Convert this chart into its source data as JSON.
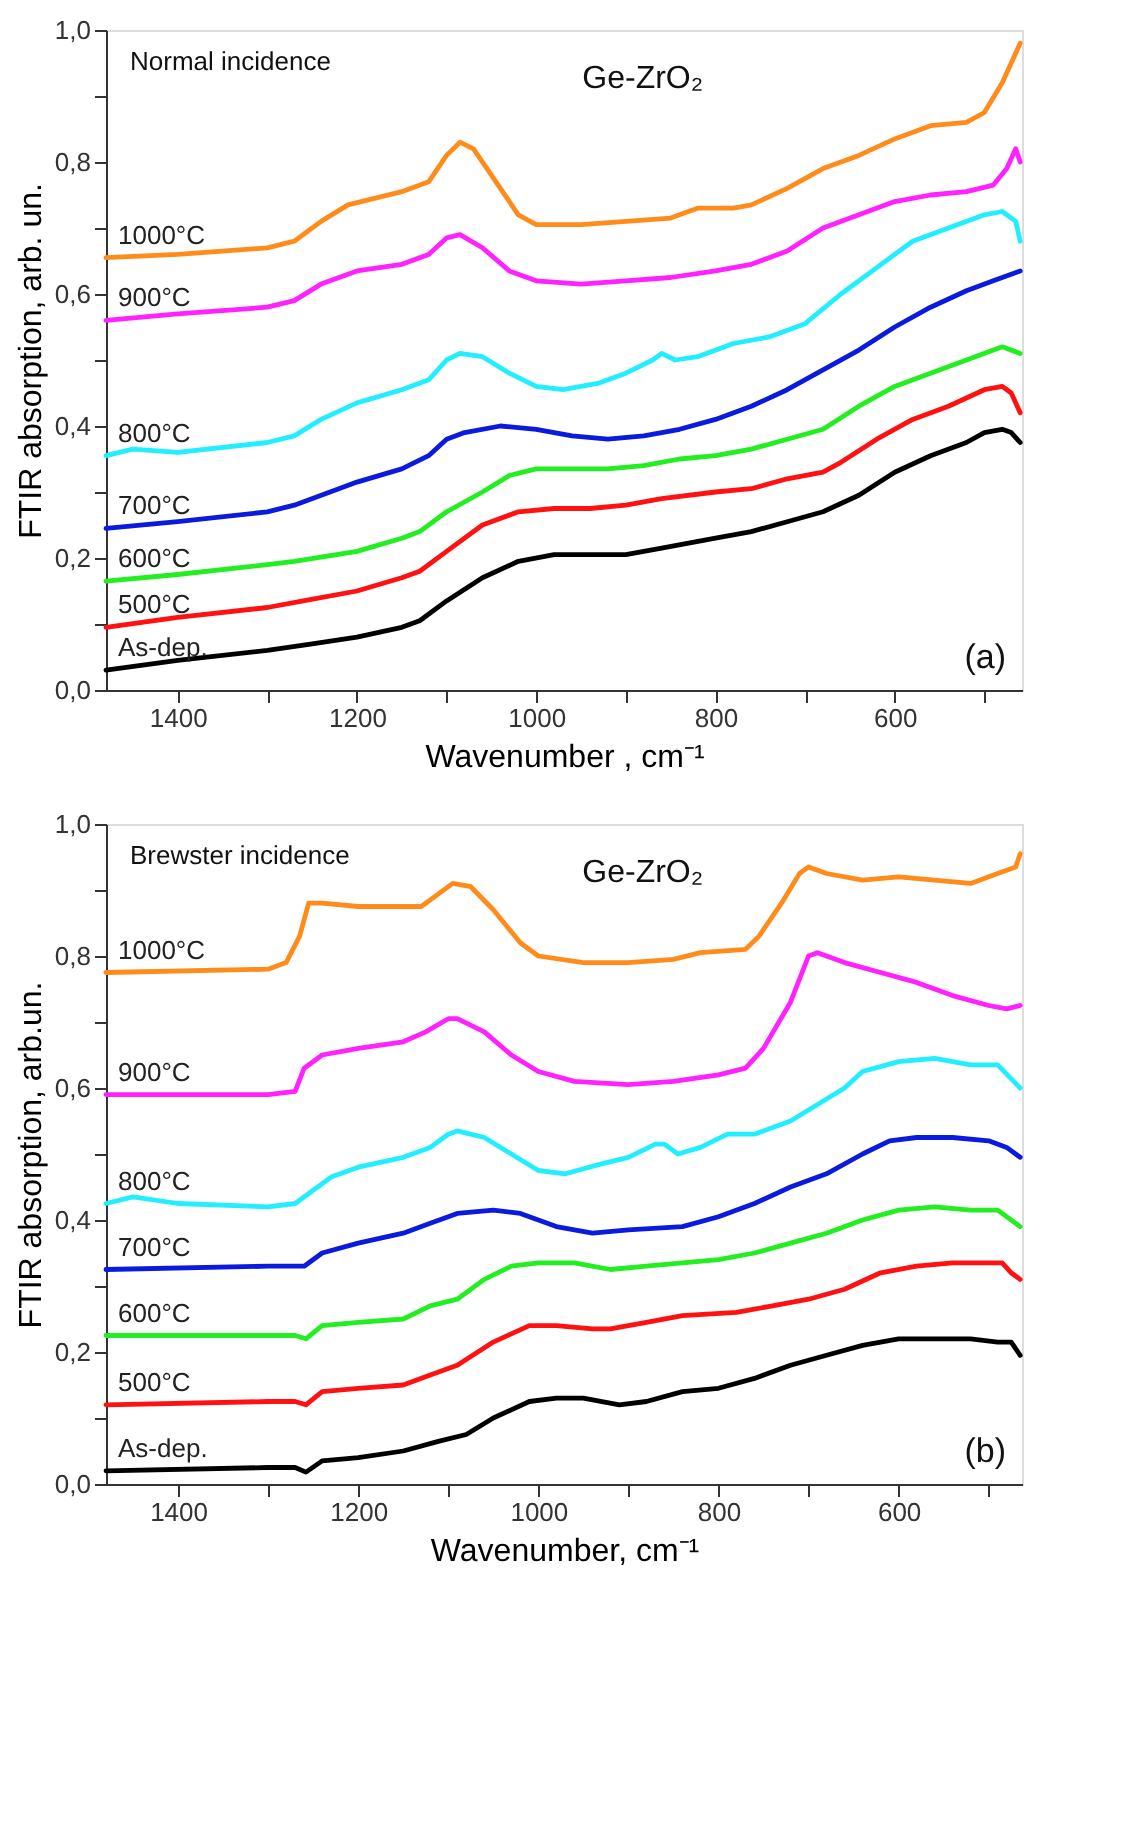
{
  "chart_data": [
    {
      "type": "line",
      "xlabel": "Wavenumber , cm⁻¹",
      "ylabel": "FTIR absorption, arb. un.",
      "annotations": [
        "Normal incidence",
        "Ge-ZrO₂",
        "(a)"
      ],
      "xlim": [
        1480,
        458
      ],
      "ylim": [
        0,
        1
      ],
      "xticks": [
        1400,
        {
          "value": 1300,
          "label": null
        },
        1200,
        {
          "value": 1100,
          "label": null
        },
        1000,
        {
          "value": 900,
          "label": null
        },
        800,
        {
          "value": 700,
          "label": null
        },
        600,
        {
          "value": 500,
          "label": null
        }
      ],
      "yticks": [
        {
          "value": 0,
          "label": "0,0"
        },
        {
          "value": 0.1,
          "label": null
        },
        {
          "value": 0.2,
          "label": "0,2"
        },
        {
          "value": 0.3,
          "label": null
        },
        {
          "value": 0.4,
          "label": "0,4"
        },
        {
          "value": 0.5,
          "label": null
        },
        {
          "value": 0.6,
          "label": "0,6"
        },
        {
          "value": 0.7,
          "label": null
        },
        {
          "value": 0.8,
          "label": "0,8"
        },
        {
          "value": 0.9,
          "label": null
        },
        {
          "value": 1,
          "label": "1,0"
        }
      ],
      "grid": false,
      "legend": false,
      "marker": "none",
      "line_style": "solid",
      "series": [
        {
          "name": "1000°C",
          "color": "#ff8c1a",
          "x": [
            1480,
            1400,
            1300,
            1270,
            1240,
            1210,
            1150,
            1120,
            1100,
            1085,
            1070,
            1050,
            1020,
            1000,
            950,
            900,
            850,
            820,
            780,
            760,
            720,
            680,
            640,
            600,
            560,
            520,
            500,
            480,
            460
          ],
          "values": [
            0.655,
            0.66,
            0.67,
            0.68,
            0.71,
            0.735,
            0.755,
            0.77,
            0.81,
            0.83,
            0.82,
            0.78,
            0.72,
            0.705,
            0.705,
            0.71,
            0.715,
            0.73,
            0.73,
            0.735,
            0.76,
            0.79,
            0.81,
            0.835,
            0.855,
            0.86,
            0.875,
            0.92,
            0.98
          ]
        },
        {
          "name": "900°C",
          "color": "#ff22ff",
          "x": [
            1480,
            1400,
            1300,
            1270,
            1240,
            1200,
            1150,
            1120,
            1100,
            1085,
            1060,
            1030,
            1000,
            950,
            900,
            850,
            800,
            760,
            720,
            680,
            640,
            600,
            560,
            520,
            490,
            475,
            465,
            460
          ],
          "values": [
            0.56,
            0.57,
            0.58,
            0.59,
            0.615,
            0.635,
            0.645,
            0.66,
            0.685,
            0.69,
            0.67,
            0.635,
            0.62,
            0.615,
            0.62,
            0.625,
            0.635,
            0.645,
            0.665,
            0.7,
            0.72,
            0.74,
            0.75,
            0.755,
            0.765,
            0.79,
            0.82,
            0.8
          ]
        },
        {
          "name": "800°C",
          "color": "#22eeff",
          "x": [
            1480,
            1450,
            1400,
            1300,
            1270,
            1240,
            1200,
            1150,
            1120,
            1100,
            1085,
            1060,
            1030,
            1000,
            970,
            930,
            900,
            870,
            860,
            845,
            820,
            780,
            740,
            700,
            660,
            620,
            580,
            540,
            500,
            480,
            465,
            460
          ],
          "values": [
            0.355,
            0.365,
            0.36,
            0.375,
            0.385,
            0.41,
            0.435,
            0.455,
            0.47,
            0.5,
            0.51,
            0.505,
            0.48,
            0.46,
            0.455,
            0.465,
            0.48,
            0.5,
            0.51,
            0.5,
            0.505,
            0.525,
            0.535,
            0.555,
            0.6,
            0.64,
            0.68,
            0.7,
            0.72,
            0.725,
            0.71,
            0.68
          ]
        },
        {
          "name": "700°C",
          "color": "#0a1adf",
          "x": [
            1480,
            1400,
            1300,
            1270,
            1230,
            1200,
            1150,
            1120,
            1100,
            1080,
            1040,
            1000,
            960,
            920,
            880,
            840,
            800,
            760,
            720,
            680,
            640,
            600,
            560,
            520,
            490,
            470,
            460
          ],
          "values": [
            0.245,
            0.255,
            0.27,
            0.28,
            0.3,
            0.315,
            0.335,
            0.355,
            0.38,
            0.39,
            0.4,
            0.395,
            0.385,
            0.38,
            0.385,
            0.395,
            0.41,
            0.43,
            0.455,
            0.485,
            0.515,
            0.55,
            0.58,
            0.605,
            0.62,
            0.63,
            0.635
          ]
        },
        {
          "name": "600°C",
          "color": "#22ee22",
          "x": [
            1480,
            1400,
            1300,
            1270,
            1200,
            1150,
            1130,
            1100,
            1060,
            1030,
            1000,
            960,
            920,
            880,
            840,
            800,
            760,
            720,
            680,
            640,
            600,
            560,
            520,
            480,
            460
          ],
          "values": [
            0.165,
            0.175,
            0.19,
            0.195,
            0.21,
            0.23,
            0.24,
            0.27,
            0.3,
            0.325,
            0.335,
            0.335,
            0.335,
            0.34,
            0.35,
            0.355,
            0.365,
            0.38,
            0.395,
            0.43,
            0.46,
            0.48,
            0.5,
            0.52,
            0.51
          ]
        },
        {
          "name": "500°C",
          "color": "#ff1111",
          "x": [
            1480,
            1400,
            1300,
            1260,
            1200,
            1150,
            1130,
            1100,
            1060,
            1020,
            980,
            940,
            900,
            860,
            800,
            760,
            720,
            680,
            660,
            620,
            580,
            540,
            500,
            480,
            470,
            460
          ],
          "values": [
            0.095,
            0.11,
            0.125,
            0.135,
            0.15,
            0.17,
            0.18,
            0.21,
            0.25,
            0.27,
            0.275,
            0.275,
            0.28,
            0.29,
            0.3,
            0.305,
            0.32,
            0.33,
            0.345,
            0.38,
            0.41,
            0.43,
            0.455,
            0.46,
            0.45,
            0.42
          ]
        },
        {
          "name": "As-dep.",
          "color": "#000000",
          "x": [
            1480,
            1400,
            1300,
            1250,
            1200,
            1150,
            1130,
            1100,
            1060,
            1020,
            980,
            940,
            900,
            860,
            800,
            760,
            720,
            680,
            640,
            600,
            560,
            520,
            500,
            480,
            470,
            460
          ],
          "values": [
            0.03,
            0.045,
            0.06,
            0.07,
            0.08,
            0.095,
            0.105,
            0.135,
            0.17,
            0.195,
            0.205,
            0.205,
            0.205,
            0.215,
            0.23,
            0.24,
            0.255,
            0.27,
            0.295,
            0.33,
            0.355,
            0.375,
            0.39,
            0.395,
            0.39,
            0.375
          ]
        }
      ]
    },
    {
      "type": "line",
      "xlabel": "Wavenumber, cm⁻¹",
      "ylabel": "FTIR absorption, arb.un.",
      "annotations": [
        "Brewster incidence",
        "Ge-ZrO₂",
        "(b)"
      ],
      "xlim": [
        1480,
        463
      ],
      "ylim": [
        0,
        1
      ],
      "xticks": [
        1400,
        {
          "value": 1300,
          "label": null
        },
        1200,
        {
          "value": 1100,
          "label": null
        },
        1000,
        {
          "value": 900,
          "label": null
        },
        800,
        {
          "value": 700,
          "label": null
        },
        600,
        {
          "value": 500,
          "label": null
        }
      ],
      "yticks": [
        {
          "value": 0,
          "label": "0,0"
        },
        {
          "value": 0.1,
          "label": null
        },
        {
          "value": 0.2,
          "label": "0,2"
        },
        {
          "value": 0.3,
          "label": null
        },
        {
          "value": 0.4,
          "label": "0,4"
        },
        {
          "value": 0.5,
          "label": null
        },
        {
          "value": 0.6,
          "label": "0,6"
        },
        {
          "value": 0.7,
          "label": null
        },
        {
          "value": 0.8,
          "label": "0,8"
        },
        {
          "value": 0.9,
          "label": null
        },
        {
          "value": 1,
          "label": "1,0"
        }
      ],
      "grid": false,
      "legend": false,
      "marker": "none",
      "line_style": "solid",
      "series": [
        {
          "name": "1000°C",
          "color": "#ff8c1a",
          "x": [
            1480,
            1300,
            1280,
            1265,
            1255,
            1240,
            1200,
            1130,
            1115,
            1095,
            1075,
            1050,
            1020,
            1000,
            950,
            900,
            850,
            820,
            770,
            755,
            730,
            710,
            700,
            680,
            640,
            600,
            560,
            520,
            490,
            470,
            465
          ],
          "values": [
            0.775,
            0.78,
            0.79,
            0.83,
            0.88,
            0.88,
            0.875,
            0.875,
            0.89,
            0.91,
            0.905,
            0.87,
            0.82,
            0.8,
            0.79,
            0.79,
            0.795,
            0.805,
            0.81,
            0.83,
            0.88,
            0.925,
            0.935,
            0.925,
            0.915,
            0.92,
            0.915,
            0.91,
            0.925,
            0.935,
            0.955
          ]
        },
        {
          "name": "900°C",
          "color": "#ff22ff",
          "x": [
            1480,
            1400,
            1300,
            1270,
            1260,
            1240,
            1200,
            1150,
            1125,
            1100,
            1090,
            1060,
            1030,
            1000,
            960,
            900,
            850,
            800,
            770,
            750,
            720,
            700,
            690,
            660,
            620,
            580,
            540,
            500,
            480,
            465
          ],
          "values": [
            0.59,
            0.59,
            0.59,
            0.595,
            0.63,
            0.65,
            0.66,
            0.67,
            0.685,
            0.705,
            0.705,
            0.685,
            0.65,
            0.625,
            0.61,
            0.605,
            0.61,
            0.62,
            0.63,
            0.66,
            0.73,
            0.8,
            0.805,
            0.79,
            0.775,
            0.76,
            0.74,
            0.725,
            0.72,
            0.725
          ]
        },
        {
          "name": "800°C",
          "color": "#22eeff",
          "x": [
            1480,
            1450,
            1400,
            1300,
            1270,
            1250,
            1230,
            1200,
            1150,
            1120,
            1100,
            1090,
            1060,
            1030,
            1000,
            970,
            930,
            900,
            870,
            860,
            845,
            820,
            790,
            760,
            720,
            690,
            660,
            640,
            600,
            560,
            520,
            490,
            465
          ],
          "values": [
            0.425,
            0.435,
            0.425,
            0.42,
            0.425,
            0.445,
            0.465,
            0.48,
            0.495,
            0.51,
            0.53,
            0.535,
            0.525,
            0.5,
            0.475,
            0.47,
            0.485,
            0.495,
            0.515,
            0.515,
            0.5,
            0.51,
            0.53,
            0.53,
            0.55,
            0.575,
            0.6,
            0.625,
            0.64,
            0.645,
            0.635,
            0.635,
            0.6
          ]
        },
        {
          "name": "700°C",
          "color": "#0a1adf",
          "x": [
            1480,
            1300,
            1260,
            1240,
            1200,
            1150,
            1120,
            1090,
            1050,
            1020,
            980,
            940,
            900,
            840,
            800,
            760,
            720,
            680,
            640,
            610,
            580,
            540,
            500,
            480,
            465
          ],
          "values": [
            0.325,
            0.33,
            0.33,
            0.35,
            0.365,
            0.38,
            0.395,
            0.41,
            0.415,
            0.41,
            0.39,
            0.38,
            0.385,
            0.39,
            0.405,
            0.425,
            0.45,
            0.47,
            0.5,
            0.52,
            0.525,
            0.525,
            0.52,
            0.51,
            0.495
          ]
        },
        {
          "name": "600°C",
          "color": "#22ee22",
          "x": [
            1480,
            1300,
            1270,
            1258,
            1240,
            1200,
            1150,
            1120,
            1090,
            1060,
            1030,
            1000,
            960,
            920,
            880,
            840,
            800,
            760,
            720,
            680,
            640,
            600,
            560,
            520,
            490,
            465
          ],
          "values": [
            0.225,
            0.225,
            0.225,
            0.22,
            0.24,
            0.245,
            0.25,
            0.27,
            0.28,
            0.31,
            0.33,
            0.335,
            0.335,
            0.325,
            0.33,
            0.335,
            0.34,
            0.35,
            0.365,
            0.38,
            0.4,
            0.415,
            0.42,
            0.415,
            0.415,
            0.39
          ]
        },
        {
          "name": "500°C",
          "color": "#ff1111",
          "x": [
            1480,
            1300,
            1270,
            1258,
            1240,
            1200,
            1150,
            1120,
            1090,
            1050,
            1010,
            980,
            940,
            920,
            880,
            840,
            780,
            740,
            700,
            660,
            620,
            580,
            540,
            500,
            485,
            475,
            465
          ],
          "values": [
            0.12,
            0.125,
            0.125,
            0.12,
            0.14,
            0.145,
            0.15,
            0.165,
            0.18,
            0.215,
            0.24,
            0.24,
            0.235,
            0.235,
            0.245,
            0.255,
            0.26,
            0.27,
            0.28,
            0.295,
            0.32,
            0.33,
            0.335,
            0.335,
            0.335,
            0.32,
            0.31
          ]
        },
        {
          "name": "As-dep.",
          "color": "#000000",
          "x": [
            1480,
            1300,
            1270,
            1258,
            1240,
            1200,
            1150,
            1110,
            1080,
            1050,
            1010,
            980,
            950,
            910,
            880,
            840,
            800,
            760,
            720,
            680,
            640,
            600,
            560,
            520,
            490,
            475,
            465
          ],
          "values": [
            0.02,
            0.025,
            0.025,
            0.018,
            0.035,
            0.04,
            0.05,
            0.065,
            0.075,
            0.1,
            0.125,
            0.13,
            0.13,
            0.12,
            0.125,
            0.14,
            0.145,
            0.16,
            0.18,
            0.195,
            0.21,
            0.22,
            0.22,
            0.22,
            0.215,
            0.215,
            0.195
          ]
        }
      ]
    }
  ]
}
